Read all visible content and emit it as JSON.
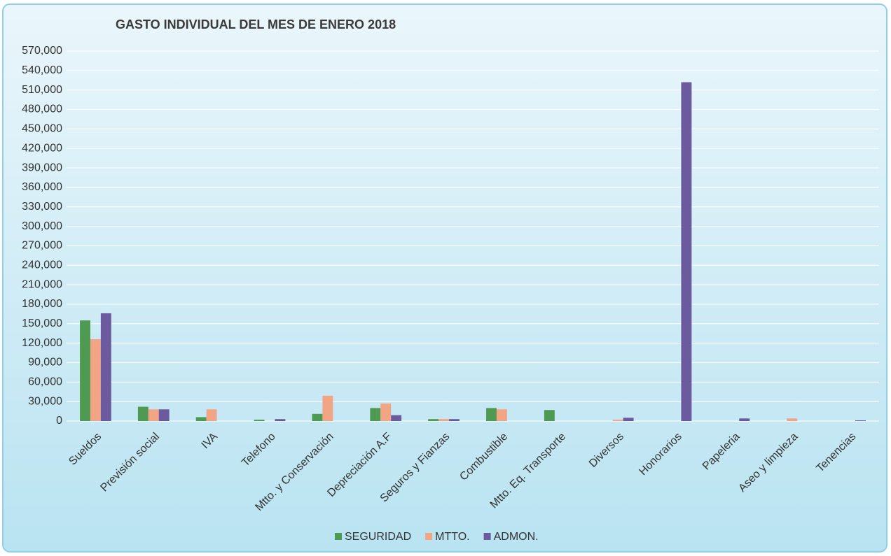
{
  "chart_data": {
    "type": "bar",
    "title": "GASTO INDIVIDUAL DEL MES DE ENERO 2018",
    "categories": [
      "Sueldos",
      "Previsión social",
      "IVA",
      "Telefono",
      "Mtto. y Conservación",
      "Depreciación A.F",
      "Seguros y Fianzas",
      "Combustible",
      "Mtto. Eq. Transporte",
      "Diversos",
      "Honorarios",
      "Papeleria",
      "Aseo y limpieza",
      "Tenencias"
    ],
    "series": [
      {
        "name": "SEGURIDAD",
        "color": "#4f9a52",
        "values": [
          155000,
          22000,
          6000,
          2000,
          11000,
          20000,
          3000,
          20000,
          17000,
          0,
          0,
          0,
          0,
          0
        ]
      },
      {
        "name": "MTTO.",
        "color": "#f2a585",
        "values": [
          126000,
          18000,
          18000,
          0,
          39000,
          27000,
          3000,
          18000,
          0,
          2000,
          0,
          0,
          4000,
          0
        ]
      },
      {
        "name": "ADMON.",
        "color": "#6b5b9e",
        "values": [
          166000,
          18000,
          0,
          3000,
          0,
          9000,
          3000,
          0,
          0,
          5000,
          522000,
          4000,
          0,
          1000
        ]
      }
    ],
    "ylim": [
      0,
      570000
    ],
    "yticks": [
      0,
      {
        "value": 30000,
        "label": "30,000"
      },
      {
        "value": 60000,
        "label": "60,000"
      },
      {
        "value": 90000,
        "label": "90,000"
      },
      {
        "value": 120000,
        "label": "120,000"
      },
      {
        "value": 150000,
        "label": "150,000"
      },
      {
        "value": 180000,
        "label": "180,000"
      },
      {
        "value": 210000,
        "label": "210,000"
      },
      {
        "value": 240000,
        "label": "240,000"
      },
      {
        "value": 270000,
        "label": "270,000"
      },
      {
        "value": 300000,
        "label": "300,000"
      },
      {
        "value": 330000,
        "label": "330,000"
      },
      {
        "value": 360000,
        "label": "360,000"
      },
      {
        "value": 390000,
        "label": "390,000"
      },
      {
        "value": 420000,
        "label": "420,000"
      },
      {
        "value": 450000,
        "label": "450,000"
      },
      {
        "value": 480000,
        "label": "480,000"
      },
      {
        "value": 510000,
        "label": "510,000"
      },
      {
        "value": 540000,
        "label": "540,000"
      },
      {
        "value": 570000,
        "label": "570,000"
      }
    ],
    "grid": true
  }
}
